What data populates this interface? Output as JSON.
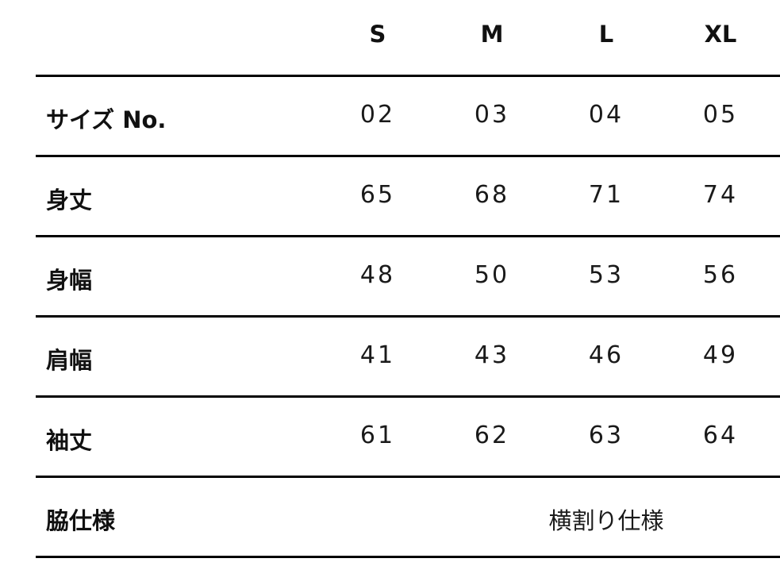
{
  "columns": [
    "S",
    "M",
    "L",
    "XL"
  ],
  "rows": [
    {
      "label": "サイズ No.",
      "values": [
        "02",
        "03",
        "04",
        "05"
      ]
    },
    {
      "label": "身丈",
      "values": [
        "65",
        "68",
        "71",
        "74"
      ]
    },
    {
      "label": "身幅",
      "values": [
        "48",
        "50",
        "53",
        "56"
      ]
    },
    {
      "label": "肩幅",
      "values": [
        "41",
        "43",
        "46",
        "49"
      ]
    },
    {
      "label": "袖丈",
      "values": [
        "61",
        "62",
        "63",
        "64"
      ]
    }
  ],
  "last_row": {
    "label": "脇仕様",
    "value": "横割り仕様"
  }
}
